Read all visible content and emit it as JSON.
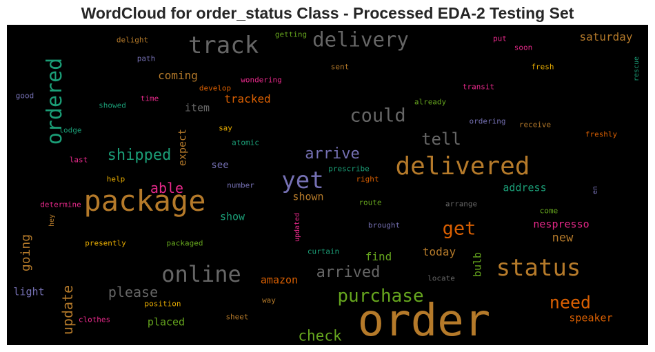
{
  "title": "WordCloud for order_status Class - Processed EDA-2 Testing Set",
  "chart_data": {
    "type": "wordcloud",
    "colormap_note": "",
    "words": [
      {
        "text": "order",
        "color": "#b57a2a"
      },
      {
        "text": "package",
        "color": "#b57a2a"
      },
      {
        "text": "delivered",
        "color": "#b57a2a"
      },
      {
        "text": "status",
        "color": "#b57a2a"
      },
      {
        "text": "track",
        "color": "#666666"
      },
      {
        "text": "ordered",
        "color": "#1b9e77"
      },
      {
        "text": "online",
        "color": "#666666"
      },
      {
        "text": "yet",
        "color": "#7570b3"
      },
      {
        "text": "delivery",
        "color": "#666666"
      },
      {
        "text": "could",
        "color": "#666666"
      },
      {
        "text": "get",
        "color": "#d95f02"
      },
      {
        "text": "need",
        "color": "#d95f02"
      },
      {
        "text": "purchase",
        "color": "#66a61e"
      },
      {
        "text": "arrived",
        "color": "#666666"
      },
      {
        "text": "tell",
        "color": "#666666"
      },
      {
        "text": "arrive",
        "color": "#7570b3"
      },
      {
        "text": "shipped",
        "color": "#1b9e77"
      },
      {
        "text": "check",
        "color": "#66a61e"
      },
      {
        "text": "update",
        "color": "#b57a2a"
      },
      {
        "text": "please",
        "color": "#666666"
      },
      {
        "text": "going",
        "color": "#b57a2a"
      },
      {
        "text": "able",
        "color": "#e7298a"
      },
      {
        "text": "coming",
        "color": "#b57a2a"
      },
      {
        "text": "tracked",
        "color": "#d95f02"
      },
      {
        "text": "saturday",
        "color": "#b57a2a"
      },
      {
        "text": "address",
        "color": "#1b9e77"
      },
      {
        "text": "nespresso",
        "color": "#e7298a"
      },
      {
        "text": "new",
        "color": "#b57a2a"
      },
      {
        "text": "speaker",
        "color": "#d95f02"
      },
      {
        "text": "today",
        "color": "#b57a2a"
      },
      {
        "text": "find",
        "color": "#66a61e"
      },
      {
        "text": "amazon",
        "color": "#d95f02"
      },
      {
        "text": "placed",
        "color": "#66a61e"
      },
      {
        "text": "light",
        "color": "#7570b3"
      },
      {
        "text": "show",
        "color": "#1b9e77"
      },
      {
        "text": "shown",
        "color": "#b57a2a"
      },
      {
        "text": "expect",
        "color": "#b57a2a"
      },
      {
        "text": "item",
        "color": "#666666"
      },
      {
        "text": "see",
        "color": "#7570b3"
      },
      {
        "text": "bulb",
        "color": "#66a61e"
      },
      {
        "text": "delight",
        "color": "#b57a2a"
      },
      {
        "text": "getting",
        "color": "#66a61e"
      },
      {
        "text": "put",
        "color": "#e7298a"
      },
      {
        "text": "soon",
        "color": "#e7298a"
      },
      {
        "text": "path",
        "color": "#7570b3"
      },
      {
        "text": "sent",
        "color": "#b57a2a"
      },
      {
        "text": "fresh",
        "color": "#e6ab02"
      },
      {
        "text": "rescue",
        "color": "#1b9e77"
      },
      {
        "text": "wondering",
        "color": "#e7298a"
      },
      {
        "text": "develop",
        "color": "#d95f02"
      },
      {
        "text": "transit",
        "color": "#e7298a"
      },
      {
        "text": "good",
        "color": "#7570b3"
      },
      {
        "text": "showed",
        "color": "#1b9e77"
      },
      {
        "text": "time",
        "color": "#e7298a"
      },
      {
        "text": "already",
        "color": "#66a61e"
      },
      {
        "text": "ordering",
        "color": "#7570b3"
      },
      {
        "text": "receive",
        "color": "#b57a2a"
      },
      {
        "text": "lodge",
        "color": "#1b9e77"
      },
      {
        "text": "say",
        "color": "#e6ab02"
      },
      {
        "text": "freshly",
        "color": "#d95f02"
      },
      {
        "text": "atomic",
        "color": "#1b9e77"
      },
      {
        "text": "last",
        "color": "#e7298a"
      },
      {
        "text": "prescribe",
        "color": "#1b9e77"
      },
      {
        "text": "help",
        "color": "#e6ab02"
      },
      {
        "text": "right",
        "color": "#d95f02"
      },
      {
        "text": "number",
        "color": "#7570b3"
      },
      {
        "text": "en",
        "color": "#7570b3"
      },
      {
        "text": "determine",
        "color": "#e7298a"
      },
      {
        "text": "route",
        "color": "#66a61e"
      },
      {
        "text": "arrange",
        "color": "#666666"
      },
      {
        "text": "hey",
        "color": "#b57a2a"
      },
      {
        "text": "come",
        "color": "#66a61e"
      },
      {
        "text": "updated",
        "color": "#e7298a"
      },
      {
        "text": "brought",
        "color": "#7570b3"
      },
      {
        "text": "presently",
        "color": "#e6ab02"
      },
      {
        "text": "packaged",
        "color": "#66a61e"
      },
      {
        "text": "curtain",
        "color": "#1b9e77"
      },
      {
        "text": "locate",
        "color": "#666666"
      },
      {
        "text": "position",
        "color": "#e6ab02"
      },
      {
        "text": "way",
        "color": "#b57a2a"
      },
      {
        "text": "clothes",
        "color": "#e7298a"
      },
      {
        "text": "sheet",
        "color": "#b57a2a"
      }
    ]
  }
}
